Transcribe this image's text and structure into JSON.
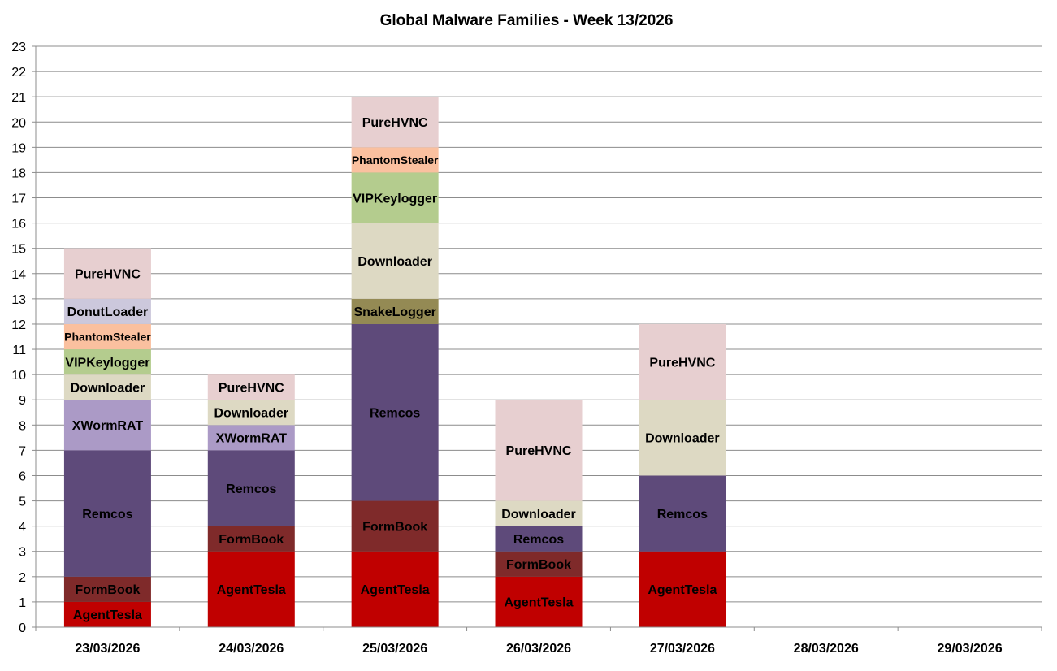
{
  "chart_data": {
    "type": "bar",
    "stacked": true,
    "title": "Global Malware Families - Week 13/2026",
    "xlabel": "",
    "ylabel": "",
    "ylim": [
      0,
      23
    ],
    "yticks": [
      0,
      1,
      2,
      3,
      4,
      5,
      6,
      7,
      8,
      9,
      10,
      11,
      12,
      13,
      14,
      15,
      16,
      17,
      18,
      19,
      20,
      21,
      22,
      23
    ],
    "grid": true,
    "legend": "none",
    "categories": [
      "23/03/2026",
      "24/03/2026",
      "25/03/2026",
      "26/03/2026",
      "27/03/2026",
      "28/03/2026",
      "29/03/2026"
    ],
    "colors": {
      "AgentTesla": "#c00000",
      "FormBook": "#7f2a2a",
      "Remcos": "#5e4a7a",
      "XWormRAT": "#ab9ac6",
      "Downloader": "#ddd9c3",
      "VIPKeylogger": "#b4cc8e",
      "PhantomStealer": "#fac09f",
      "DonutLoader": "#ccc8dc",
      "PureHVNC": "#e7cfd0",
      "SnakeLogger": "#948a54"
    },
    "stacks": [
      [
        {
          "name": "AgentTesla",
          "value": 1
        },
        {
          "name": "FormBook",
          "value": 1
        },
        {
          "name": "Remcos",
          "value": 5
        },
        {
          "name": "XWormRAT",
          "value": 2
        },
        {
          "name": "Downloader",
          "value": 1
        },
        {
          "name": "VIPKeylogger",
          "value": 1
        },
        {
          "name": "PhantomStealer",
          "value": 1
        },
        {
          "name": "DonutLoader",
          "value": 1
        },
        {
          "name": "PureHVNC",
          "value": 2
        }
      ],
      [
        {
          "name": "AgentTesla",
          "value": 3
        },
        {
          "name": "FormBook",
          "value": 1
        },
        {
          "name": "Remcos",
          "value": 3
        },
        {
          "name": "XWormRAT",
          "value": 1
        },
        {
          "name": "Downloader",
          "value": 1
        },
        {
          "name": "PureHVNC",
          "value": 1
        }
      ],
      [
        {
          "name": "AgentTesla",
          "value": 3
        },
        {
          "name": "FormBook",
          "value": 2
        },
        {
          "name": "Remcos",
          "value": 7
        },
        {
          "name": "SnakeLogger",
          "value": 1
        },
        {
          "name": "Downloader",
          "value": 3
        },
        {
          "name": "VIPKeylogger",
          "value": 2
        },
        {
          "name": "PhantomStealer",
          "value": 1
        },
        {
          "name": "PureHVNC",
          "value": 2
        }
      ],
      [
        {
          "name": "AgentTesla",
          "value": 2
        },
        {
          "name": "FormBook",
          "value": 1
        },
        {
          "name": "Remcos",
          "value": 1
        },
        {
          "name": "Downloader",
          "value": 1
        },
        {
          "name": "PureHVNC",
          "value": 4
        }
      ],
      [
        {
          "name": "AgentTesla",
          "value": 3
        },
        {
          "name": "Remcos",
          "value": 3
        },
        {
          "name": "Downloader",
          "value": 3
        },
        {
          "name": "PureHVNC",
          "value": 3
        }
      ],
      [],
      []
    ]
  }
}
